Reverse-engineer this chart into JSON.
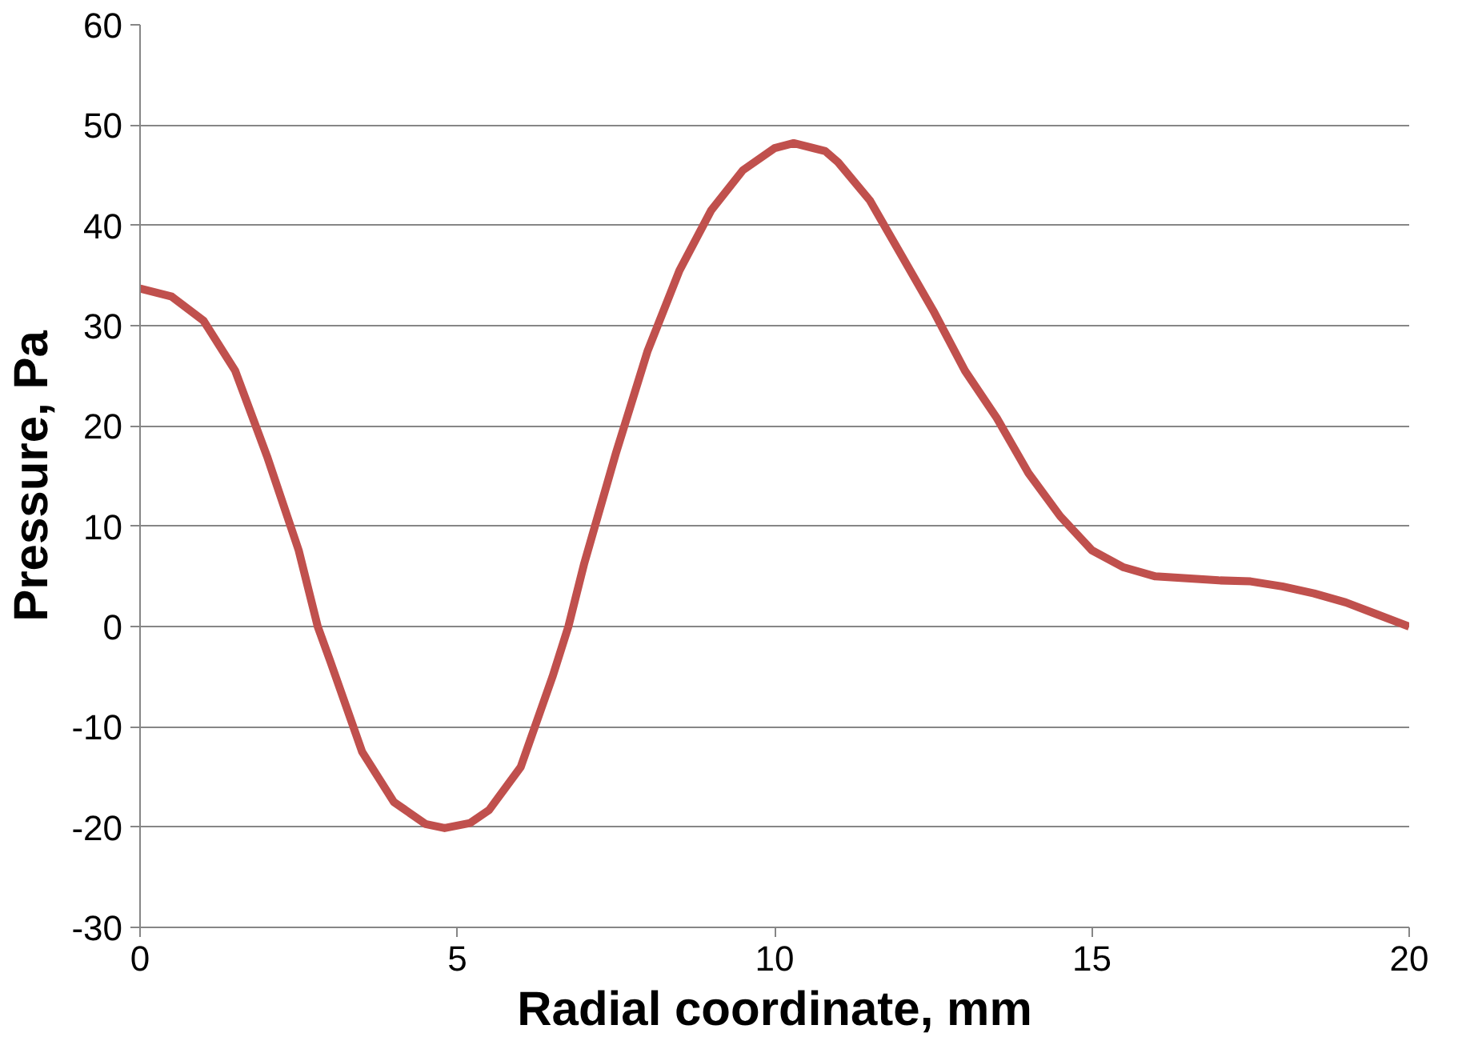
{
  "chart_data": {
    "type": "line",
    "xlabel": "Radial coordinate, mm",
    "ylabel": "Pressure, Pa",
    "x": [
      0,
      0.5,
      1,
      1.5,
      2,
      2.5,
      2.8,
      3,
      3.5,
      4,
      4.5,
      4.8,
      5.2,
      5.5,
      6,
      6.5,
      6.75,
      7,
      7.5,
      8,
      8.5,
      9,
      9.5,
      10,
      10.3,
      10.8,
      11,
      11.5,
      12,
      12.5,
      13,
      13.5,
      14,
      14.5,
      15,
      15.5,
      16,
      17,
      17.5,
      18,
      18.5,
      19,
      19.5,
      20
    ],
    "series": [
      {
        "color": "#c0504d",
        "values": [
          33.7,
          32.9,
          30.5,
          25.5,
          17,
          7.6,
          0,
          -3.5,
          -12.5,
          -17.5,
          -19.7,
          -20.1,
          -19.6,
          -18.3,
          -14,
          -5,
          0,
          6.3,
          17.3,
          27.5,
          35.5,
          41.5,
          45.5,
          47.7,
          48.2,
          47.4,
          46.3,
          42.5,
          37,
          31.5,
          25.5,
          20.8,
          15.3,
          11.0,
          7.6,
          5.9,
          5.0,
          4.6,
          4.5,
          4.0,
          3.3,
          2.4,
          1.2,
          0
        ]
      }
    ],
    "xlim": [
      0,
      20
    ],
    "xticks": [
      0,
      5,
      10,
      15,
      20
    ],
    "ylim": [
      -30,
      60
    ],
    "yticks": [
      -30,
      -20,
      -10,
      0,
      10,
      20,
      30,
      40,
      50,
      60
    ],
    "grid": "y",
    "marker": "none",
    "line_style": "solid"
  }
}
